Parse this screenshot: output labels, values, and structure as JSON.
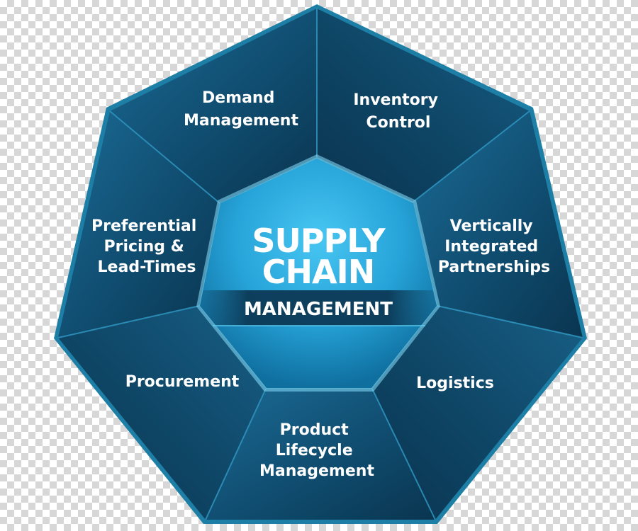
{
  "center": {
    "title_line1": "SUPPLY",
    "title_line2": "CHAIN",
    "subtitle": "MANAGEMENT"
  },
  "segments": [
    {
      "id": "demand-management",
      "lines": [
        "Demand",
        "Management"
      ]
    },
    {
      "id": "inventory-control",
      "lines": [
        "Inventory",
        "Control"
      ]
    },
    {
      "id": "vertically-integrated-partnerships",
      "lines": [
        "Vertically",
        "Integrated",
        "Partnerships"
      ]
    },
    {
      "id": "logistics",
      "lines": [
        "Logistics"
      ]
    },
    {
      "id": "product-lifecycle-management",
      "lines": [
        "Product",
        "Lifecycle",
        "Management"
      ]
    },
    {
      "id": "procurement",
      "lines": [
        "Procurement"
      ]
    },
    {
      "id": "preferential-pricing-lead-times",
      "lines": [
        "Preferential",
        "Pricing &",
        "Lead-Times"
      ]
    }
  ],
  "colors": {
    "outer_border": "#1d7fa6",
    "segment_dark": "#0d3f5d",
    "segment_mid": "#15587d",
    "segment_light": "#1a6a94",
    "divider": "#2f95c0",
    "center_light": "#35b8ea",
    "center_dark": "#0f6f9f",
    "band": "#0c3a57"
  }
}
